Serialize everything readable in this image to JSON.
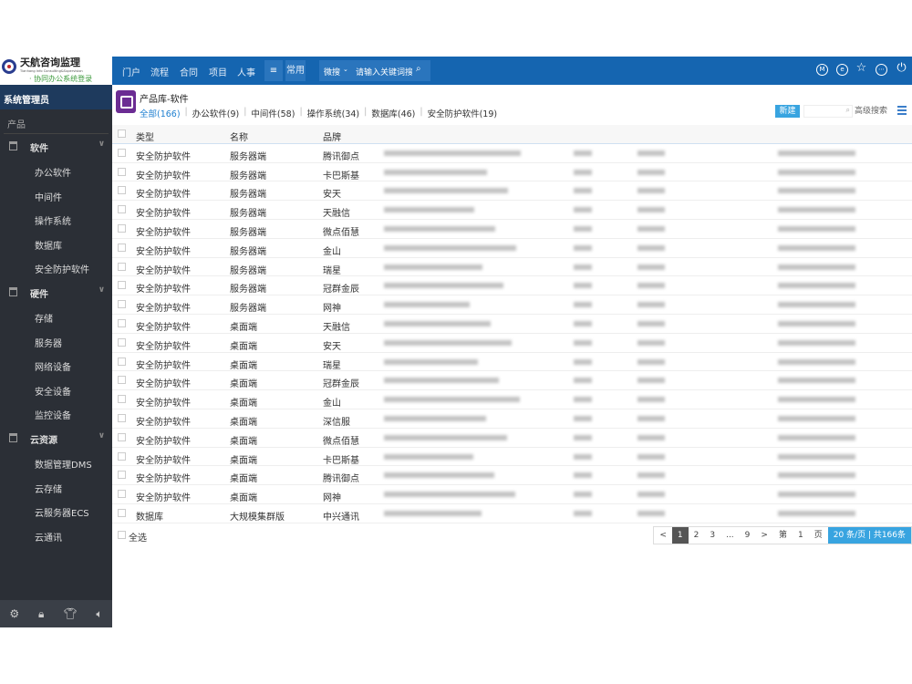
{
  "logo": {
    "name": "天航咨询监理",
    "english": "Tianhang Info Consulting&Supervision",
    "subtitle": "· 协同办公系统登录"
  },
  "topnav": {
    "items": [
      "门户",
      "流程",
      "合同",
      "项目",
      "人事"
    ],
    "menu_icon": "≡",
    "common": "常用",
    "search_scope": "微搜",
    "search_placeholder": "请输入关键词搜索",
    "icons": [
      "m-circle-icon",
      "e-circle-icon",
      "star-icon",
      "more-icon",
      "power-icon"
    ]
  },
  "sidebar": {
    "user": "系统管理员",
    "section": "产品",
    "groups": [
      {
        "label": "软件",
        "items": [
          "办公软件",
          "中间件",
          "操作系统",
          "数据库",
          "安全防护软件"
        ]
      },
      {
        "label": "硬件",
        "items": [
          "存储",
          "服务器",
          "网络设备",
          "安全设备",
          "监控设备"
        ]
      },
      {
        "label": "云资源",
        "items": [
          "数据管理DMS",
          "云存储",
          "云服务器ECS",
          "云通讯"
        ]
      }
    ],
    "footer_icons": [
      "settings-icon",
      "lock-icon",
      "shirt-icon",
      "speaker-icon"
    ]
  },
  "main": {
    "title": "产品库-软件",
    "categories": [
      "全部(166)",
      "办公软件(9)",
      "中间件(58)",
      "操作系统(34)",
      "数据库(46)",
      "安全防护软件(19)"
    ],
    "new_button": "新建",
    "advanced_search": "高级搜索",
    "columns": [
      "类型",
      "名称",
      "品牌"
    ],
    "rows": [
      [
        "安全防护软件",
        "服务器端",
        "腾讯御点"
      ],
      [
        "安全防护软件",
        "服务器端",
        "卡巴斯基"
      ],
      [
        "安全防护软件",
        "服务器端",
        "安天"
      ],
      [
        "安全防护软件",
        "服务器端",
        "天融信"
      ],
      [
        "安全防护软件",
        "服务器端",
        "微点佰慧"
      ],
      [
        "安全防护软件",
        "服务器端",
        "金山"
      ],
      [
        "安全防护软件",
        "服务器端",
        "瑞星"
      ],
      [
        "安全防护软件",
        "服务器端",
        "冠群金辰"
      ],
      [
        "安全防护软件",
        "服务器端",
        "网神"
      ],
      [
        "安全防护软件",
        "桌面端",
        "天融信"
      ],
      [
        "安全防护软件",
        "桌面端",
        "安天"
      ],
      [
        "安全防护软件",
        "桌面端",
        "瑞星"
      ],
      [
        "安全防护软件",
        "桌面端",
        "冠群金辰"
      ],
      [
        "安全防护软件",
        "桌面端",
        "金山"
      ],
      [
        "安全防护软件",
        "桌面端",
        "深信服"
      ],
      [
        "安全防护软件",
        "桌面端",
        "微点佰慧"
      ],
      [
        "安全防护软件",
        "桌面端",
        "卡巴斯基"
      ],
      [
        "安全防护软件",
        "桌面端",
        "腾讯御点"
      ],
      [
        "安全防护软件",
        "桌面端",
        "网神"
      ],
      [
        "数据库",
        "大规模集群版",
        "中兴通讯"
      ]
    ],
    "select_all": "全选",
    "pager": {
      "prev": "<",
      "pages": [
        "1",
        "2",
        "3",
        "...",
        "9"
      ],
      "current": "1",
      "next": ">",
      "goto_prefix": "第",
      "goto_page": "1",
      "goto_suffix": "页",
      "page_info": "20 条/页 | 共166条"
    }
  },
  "colors": {
    "topbar": "#1565b0",
    "sidebar": "#2b2f36",
    "accent": "#38a4e0"
  }
}
